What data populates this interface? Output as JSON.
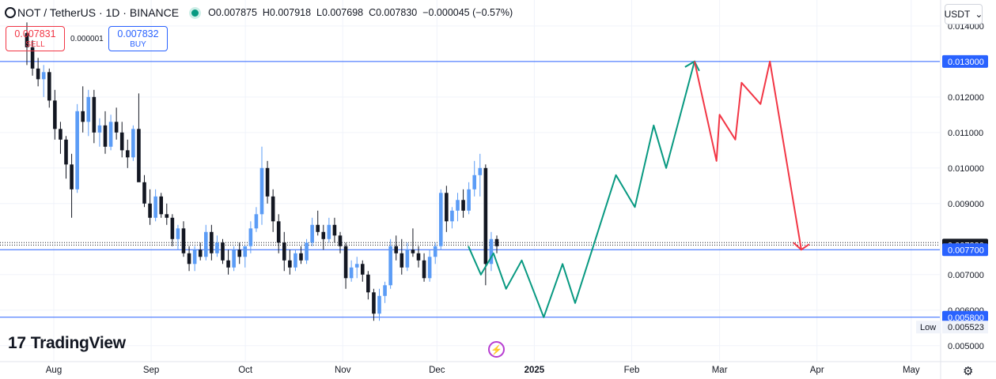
{
  "header": {
    "symbol": "NOT / TetherUS · 1D · BINANCE",
    "open": "O0.007875",
    "high": "H0.007918",
    "low": "L0.007698",
    "close": "C0.007830",
    "change": "−0.000045 (−0.57%)"
  },
  "trade": {
    "sell_price": "0.007831",
    "sell_label": "SELL",
    "spread": "0.000001",
    "buy_price": "0.007832",
    "buy_label": "BUY"
  },
  "currency": "USDT",
  "brand": "TradingView",
  "colors": {
    "up": "#5b9cf6",
    "down": "#131722",
    "hline": "#2962ff",
    "projection_up": "#089981",
    "projection_down": "#f23645"
  },
  "chart_data": {
    "type": "candlestick",
    "title": "NOT / TetherUS · 1D · BINANCE",
    "x_ticks": [
      "Aug",
      "Sep",
      "Oct",
      "Nov",
      "Dec",
      "2025",
      "Feb",
      "Mar",
      "Apr",
      "May"
    ],
    "y_ticks": [
      "0.014000",
      "0.012000",
      "0.011000",
      "0.010000",
      "0.009000",
      "0.007000",
      "0.006000",
      "0.005000"
    ],
    "ylim": [
      0.00455,
      0.01473
    ],
    "grid": true,
    "price_levels": [
      {
        "label": "0.013000",
        "value": 0.013,
        "style": "line",
        "bg": "#2962ff"
      },
      {
        "label": "0.007830",
        "value": 0.00783,
        "style": "dotted",
        "bg": "#131722"
      },
      {
        "label": "0.007700",
        "value": 0.0077,
        "style": "line",
        "bg": "#2962ff"
      },
      {
        "label": "0.005800",
        "value": 0.0058,
        "style": "line",
        "bg": "#2962ff"
      }
    ],
    "low_label": {
      "text": "Low",
      "value": "0.005523",
      "num": 0.005523
    },
    "candles_ohlc": [
      [
        0.0138,
        0.0141,
        0.0129,
        0.0134
      ],
      [
        0.0134,
        0.0136,
        0.0126,
        0.0128
      ],
      [
        0.0128,
        0.0131,
        0.0123,
        0.0125
      ],
      [
        0.0125,
        0.0129,
        0.012,
        0.0127
      ],
      [
        0.0127,
        0.0128,
        0.0117,
        0.0119
      ],
      [
        0.0119,
        0.0122,
        0.0108,
        0.0111
      ],
      [
        0.0111,
        0.0113,
        0.0104,
        0.0108
      ],
      [
        0.0108,
        0.0109,
        0.0097,
        0.0101
      ],
      [
        0.0101,
        0.0104,
        0.0086,
        0.0094
      ],
      [
        0.0094,
        0.0118,
        0.0093,
        0.0116
      ],
      [
        0.0116,
        0.0123,
        0.011,
        0.0113
      ],
      [
        0.0113,
        0.0122,
        0.0109,
        0.012
      ],
      [
        0.012,
        0.0122,
        0.0107,
        0.011
      ],
      [
        0.011,
        0.0114,
        0.0106,
        0.0112
      ],
      [
        0.0112,
        0.0116,
        0.0104,
        0.0106
      ],
      [
        0.0106,
        0.0115,
        0.0105,
        0.0113
      ],
      [
        0.0113,
        0.0117,
        0.0108,
        0.011
      ],
      [
        0.011,
        0.0113,
        0.0103,
        0.0105
      ],
      [
        0.0105,
        0.0108,
        0.01,
        0.0103
      ],
      [
        0.0103,
        0.0112,
        0.0102,
        0.0111
      ],
      [
        0.0111,
        0.0121,
        0.0098,
        0.0096
      ],
      [
        0.0096,
        0.0098,
        0.0089,
        0.009
      ],
      [
        0.009,
        0.0094,
        0.0084,
        0.0086
      ],
      [
        0.0086,
        0.0094,
        0.0085,
        0.0092
      ],
      [
        0.0092,
        0.0093,
        0.0086,
        0.0087
      ],
      [
        0.0087,
        0.009,
        0.0084,
        0.0086
      ],
      [
        0.0086,
        0.0087,
        0.0078,
        0.008
      ],
      [
        0.008,
        0.0084,
        0.0077,
        0.0083
      ],
      [
        0.0083,
        0.0085,
        0.0075,
        0.0076
      ],
      [
        0.0076,
        0.0078,
        0.0071,
        0.0073
      ],
      [
        0.0073,
        0.0078,
        0.0071,
        0.0077
      ],
      [
        0.0077,
        0.0079,
        0.0074,
        0.0075
      ],
      [
        0.0075,
        0.0084,
        0.0074,
        0.0082
      ],
      [
        0.0082,
        0.0084,
        0.0074,
        0.0076
      ],
      [
        0.0076,
        0.0081,
        0.0075,
        0.0079
      ],
      [
        0.0079,
        0.008,
        0.0073,
        0.0074
      ],
      [
        0.0074,
        0.0077,
        0.007,
        0.0072
      ],
      [
        0.0072,
        0.0078,
        0.0071,
        0.0077
      ],
      [
        0.0077,
        0.0079,
        0.0073,
        0.0075
      ],
      [
        0.0075,
        0.0078,
        0.0072,
        0.0078
      ],
      [
        0.0078,
        0.0085,
        0.0076,
        0.0083
      ],
      [
        0.0083,
        0.0089,
        0.0082,
        0.0087
      ],
      [
        0.0087,
        0.0106,
        0.0084,
        0.01
      ],
      [
        0.01,
        0.0102,
        0.009,
        0.0092
      ],
      [
        0.0092,
        0.0094,
        0.0082,
        0.0085
      ],
      [
        0.0085,
        0.0087,
        0.0076,
        0.0079
      ],
      [
        0.0079,
        0.0082,
        0.0071,
        0.0074
      ],
      [
        0.0074,
        0.0077,
        0.007,
        0.0072
      ],
      [
        0.0072,
        0.0077,
        0.0071,
        0.0076
      ],
      [
        0.0076,
        0.0078,
        0.0073,
        0.0074
      ],
      [
        0.0074,
        0.008,
        0.0073,
        0.0079
      ],
      [
        0.0079,
        0.0086,
        0.0078,
        0.0084
      ],
      [
        0.0084,
        0.0088,
        0.0081,
        0.0082
      ],
      [
        0.0082,
        0.0084,
        0.0077,
        0.008
      ],
      [
        0.008,
        0.0086,
        0.0079,
        0.0084
      ],
      [
        0.0084,
        0.0086,
        0.0079,
        0.0081
      ],
      [
        0.0081,
        0.0082,
        0.0076,
        0.0078
      ],
      [
        0.0078,
        0.0079,
        0.0066,
        0.0069
      ],
      [
        0.0069,
        0.0074,
        0.0068,
        0.0072
      ],
      [
        0.0072,
        0.0075,
        0.0069,
        0.0073
      ],
      [
        0.0073,
        0.0074,
        0.0068,
        0.007
      ],
      [
        0.007,
        0.0071,
        0.0063,
        0.0065
      ],
      [
        0.0065,
        0.0066,
        0.0057,
        0.0059
      ],
      [
        0.0059,
        0.0066,
        0.0057,
        0.0064
      ],
      [
        0.0064,
        0.0068,
        0.0062,
        0.0067
      ],
      [
        0.0067,
        0.008,
        0.0066,
        0.0078
      ],
      [
        0.0078,
        0.0081,
        0.0074,
        0.0076
      ],
      [
        0.0076,
        0.008,
        0.007,
        0.0072
      ],
      [
        0.0072,
        0.0079,
        0.0071,
        0.0077
      ],
      [
        0.0077,
        0.0083,
        0.0075,
        0.0076
      ],
      [
        0.0076,
        0.0078,
        0.0072,
        0.0074
      ],
      [
        0.0074,
        0.0076,
        0.0068,
        0.0069
      ],
      [
        0.0069,
        0.0077,
        0.0068,
        0.0075
      ],
      [
        0.0075,
        0.0079,
        0.0073,
        0.0078
      ],
      [
        0.0078,
        0.0094,
        0.0077,
        0.0093
      ],
      [
        0.0093,
        0.0095,
        0.0082,
        0.0085
      ],
      [
        0.0085,
        0.0089,
        0.0083,
        0.0088
      ],
      [
        0.0088,
        0.0093,
        0.0085,
        0.0091
      ],
      [
        0.0091,
        0.0094,
        0.0086,
        0.0088
      ],
      [
        0.0088,
        0.0096,
        0.0087,
        0.0094
      ],
      [
        0.0094,
        0.0102,
        0.0092,
        0.0098
      ],
      [
        0.0098,
        0.0104,
        0.0092,
        0.01
      ],
      [
        0.01,
        0.0101,
        0.0067,
        0.0073
      ],
      [
        0.0073,
        0.0082,
        0.0071,
        0.008
      ],
      [
        0.008,
        0.0081,
        0.0076,
        0.0078
      ]
    ],
    "projection_up": [
      [
        "2024-12-11",
        0.0078
      ],
      [
        "2024-12-15",
        0.007
      ],
      [
        "2024-12-19",
        0.0076
      ],
      [
        "2024-12-23",
        0.0066
      ],
      [
        "2024-12-28",
        0.0074
      ],
      [
        "2025-01-04",
        0.0058
      ],
      [
        "2025-01-10",
        0.0073
      ],
      [
        "2025-01-14",
        0.0062
      ],
      [
        "2025-01-27",
        0.0098
      ],
      [
        "2025-02-02",
        0.0089
      ],
      [
        "2025-02-08",
        0.0112
      ],
      [
        "2025-02-12",
        0.01
      ],
      [
        "2025-02-21",
        0.013
      ]
    ],
    "projection_down": [
      [
        "2025-02-21",
        0.013
      ],
      [
        "2025-02-28",
        0.0102
      ],
      [
        "2025-03-01",
        0.0115
      ],
      [
        "2025-03-06",
        0.0108
      ],
      [
        "2025-03-08",
        0.0124
      ],
      [
        "2025-03-14",
        0.0118
      ],
      [
        "2025-03-17",
        0.013
      ],
      [
        "2025-03-27",
        0.0077
      ]
    ]
  }
}
